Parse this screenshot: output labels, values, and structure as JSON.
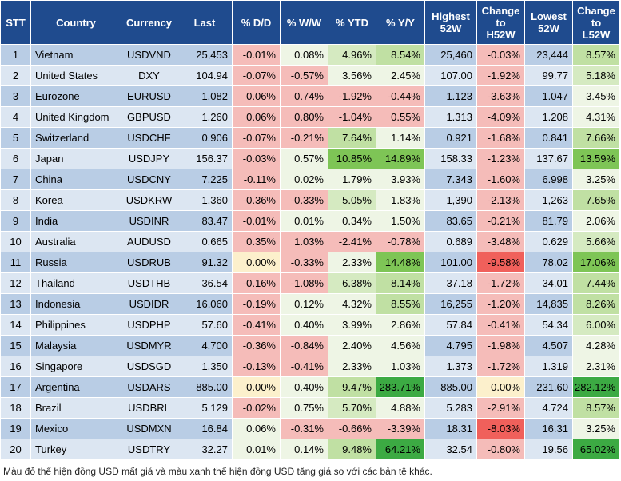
{
  "colors": {
    "header_bg": "#1f4b8e",
    "row_odd": "#b9cde5",
    "row_even": "#dce6f2"
  },
  "chart_data": {
    "type": "table",
    "columns": [
      "STT",
      "Country",
      "Currency",
      "Last",
      "% D/D",
      "% W/W",
      "% YTD",
      "% Y/Y",
      "Highest\n52W",
      "Change\nto\nH52W",
      "Lowest\n52W",
      "Change\nto\nL52W"
    ],
    "rows": [
      [
        "1",
        "Vietnam",
        "USDVND",
        "25,453",
        "-0.01%",
        "0.08%",
        "4.96%",
        "8.54%",
        "25,460",
        "-0.03%",
        "23,444",
        "8.57%"
      ],
      [
        "2",
        "United States",
        "DXY",
        "104.94",
        "-0.07%",
        "-0.57%",
        "3.56%",
        "2.45%",
        "107.00",
        "-1.92%",
        "99.77",
        "5.18%"
      ],
      [
        "3",
        "Eurozone",
        "EURUSD",
        "1.082",
        "0.06%",
        "0.74%",
        "-1.92%",
        "-0.44%",
        "1.123",
        "-3.63%",
        "1.047",
        "3.45%"
      ],
      [
        "4",
        "United Kingdom",
        "GBPUSD",
        "1.260",
        "0.06%",
        "0.80%",
        "-1.04%",
        "0.55%",
        "1.313",
        "-4.09%",
        "1.208",
        "4.31%"
      ],
      [
        "5",
        "Switzerland",
        "USDCHF",
        "0.906",
        "-0.07%",
        "-0.21%",
        "7.64%",
        "1.14%",
        "0.921",
        "-1.68%",
        "0.841",
        "7.66%"
      ],
      [
        "6",
        "Japan",
        "USDJPY",
        "156.37",
        "-0.03%",
        "0.57%",
        "10.85%",
        "14.89%",
        "158.33",
        "-1.23%",
        "137.67",
        "13.59%"
      ],
      [
        "7",
        "China",
        "USDCNY",
        "7.225",
        "-0.11%",
        "0.02%",
        "1.79%",
        "3.93%",
        "7.343",
        "-1.60%",
        "6.998",
        "3.25%"
      ],
      [
        "8",
        "Korea",
        "USDKRW",
        "1,360",
        "-0.36%",
        "-0.33%",
        "5.05%",
        "1.83%",
        "1,390",
        "-2.13%",
        "1,263",
        "7.65%"
      ],
      [
        "9",
        "India",
        "USDINR",
        "83.47",
        "-0.01%",
        "0.01%",
        "0.34%",
        "1.50%",
        "83.65",
        "-0.21%",
        "81.79",
        "2.06%"
      ],
      [
        "10",
        "Australia",
        "AUDUSD",
        "0.665",
        "0.35%",
        "1.03%",
        "-2.41%",
        "-0.78%",
        "0.689",
        "-3.48%",
        "0.629",
        "5.66%"
      ],
      [
        "11",
        "Russia",
        "USDRUB",
        "91.32",
        "0.00%",
        "-0.33%",
        "2.33%",
        "14.48%",
        "101.00",
        "-9.58%",
        "78.02",
        "17.06%"
      ],
      [
        "12",
        "Thailand",
        "USDTHB",
        "36.54",
        "-0.16%",
        "-1.08%",
        "6.38%",
        "8.14%",
        "37.18",
        "-1.72%",
        "34.01",
        "7.44%"
      ],
      [
        "13",
        "Indonesia",
        "USDIDR",
        "16,060",
        "-0.19%",
        "0.12%",
        "4.32%",
        "8.55%",
        "16,255",
        "-1.20%",
        "14,835",
        "8.26%"
      ],
      [
        "14",
        "Philippines",
        "USDPHP",
        "57.60",
        "-0.41%",
        "0.40%",
        "3.99%",
        "2.86%",
        "57.84",
        "-0.41%",
        "54.34",
        "6.00%"
      ],
      [
        "15",
        "Malaysia",
        "USDMYR",
        "4.700",
        "-0.36%",
        "-0.84%",
        "2.40%",
        "4.56%",
        "4.795",
        "-1.98%",
        "4.507",
        "4.28%"
      ],
      [
        "16",
        "Singapore",
        "USDSGD",
        "1.350",
        "-0.13%",
        "-0.41%",
        "2.33%",
        "1.03%",
        "1.373",
        "-1.72%",
        "1.319",
        "2.31%"
      ],
      [
        "17",
        "Argentina",
        "USDARS",
        "885.00",
        "0.00%",
        "0.40%",
        "9.47%",
        "283.71%",
        "885.00",
        "0.00%",
        "231.60",
        "282.12%"
      ],
      [
        "18",
        "Brazil",
        "USDBRL",
        "5.129",
        "-0.02%",
        "0.75%",
        "5.70%",
        "4.88%",
        "5.283",
        "-2.91%",
        "4.724",
        "8.57%"
      ],
      [
        "19",
        "Mexico",
        "USDMXN",
        "16.84",
        "0.06%",
        "-0.31%",
        "-0.66%",
        "-3.39%",
        "18.31",
        "-8.03%",
        "16.31",
        "3.25%"
      ],
      [
        "20",
        "Turkey",
        "USDTRY",
        "32.27",
        "0.01%",
        "0.14%",
        "9.48%",
        "64.21%",
        "32.54",
        "-0.80%",
        "19.56",
        "65.02%"
      ]
    ],
    "fills": [
      [
        null,
        null,
        null,
        null,
        "#f5bcb9",
        "#eef5e5",
        "#d5eac1",
        "#c0e0a3",
        null,
        "#f5bcb9",
        null,
        "#c0e0a3"
      ],
      [
        null,
        null,
        null,
        null,
        "#f5bcb9",
        "#f5bcb9",
        "#eef5e5",
        "#eef5e5",
        null,
        "#f5bcb9",
        null,
        "#d5eac1"
      ],
      [
        null,
        null,
        null,
        null,
        "#f5bcb9",
        "#f5bcb9",
        "#f5bcb9",
        "#f5bcb9",
        null,
        "#f5bcb9",
        null,
        "#eef5e5"
      ],
      [
        null,
        null,
        null,
        null,
        "#f5bcb9",
        "#f5bcb9",
        "#f5bcb9",
        "#f5bcb9",
        null,
        "#f5bcb9",
        null,
        "#eef5e5"
      ],
      [
        null,
        null,
        null,
        null,
        "#f5bcb9",
        "#f5bcb9",
        "#c0e0a3",
        "#eef5e5",
        null,
        "#f5bcb9",
        null,
        "#c0e0a3"
      ],
      [
        null,
        null,
        null,
        null,
        "#f5bcb9",
        "#eef5e5",
        "#7ec556",
        "#7ec556",
        null,
        "#f5bcb9",
        null,
        "#7ec556"
      ],
      [
        null,
        null,
        null,
        null,
        "#f5bcb9",
        "#eef5e5",
        "#eef5e5",
        "#eef5e5",
        null,
        "#f5bcb9",
        null,
        "#eef5e5"
      ],
      [
        null,
        null,
        null,
        null,
        "#f5bcb9",
        "#f5bcb9",
        "#d5eac1",
        "#eef5e5",
        null,
        "#f5bcb9",
        null,
        "#c0e0a3"
      ],
      [
        null,
        null,
        null,
        null,
        "#f5bcb9",
        "#eef5e5",
        "#eef5e5",
        "#eef5e5",
        null,
        "#f5bcb9",
        null,
        "#eef5e5"
      ],
      [
        null,
        null,
        null,
        null,
        "#f5bcb9",
        "#f5bcb9",
        "#f5bcb9",
        "#f5bcb9",
        null,
        "#f5bcb9",
        null,
        "#d5eac1"
      ],
      [
        null,
        null,
        null,
        null,
        "#fcf0cc",
        "#f5bcb9",
        "#eef5e5",
        "#7ec556",
        null,
        "#f0605b",
        null,
        "#7ec556"
      ],
      [
        null,
        null,
        null,
        null,
        "#f5bcb9",
        "#f5bcb9",
        "#d5eac1",
        "#c0e0a3",
        null,
        "#f5bcb9",
        null,
        "#c0e0a3"
      ],
      [
        null,
        null,
        null,
        null,
        "#f5bcb9",
        "#eef5e5",
        "#eef5e5",
        "#c0e0a3",
        null,
        "#f5bcb9",
        null,
        "#c0e0a3"
      ],
      [
        null,
        null,
        null,
        null,
        "#f5bcb9",
        "#eef5e5",
        "#eef5e5",
        "#eef5e5",
        null,
        "#f5bcb9",
        null,
        "#d5eac1"
      ],
      [
        null,
        null,
        null,
        null,
        "#f5bcb9",
        "#f5bcb9",
        "#eef5e5",
        "#eef5e5",
        null,
        "#f5bcb9",
        null,
        "#eef5e5"
      ],
      [
        null,
        null,
        null,
        null,
        "#f5bcb9",
        "#f5bcb9",
        "#eef5e5",
        "#eef5e5",
        null,
        "#f5bcb9",
        null,
        "#eef5e5"
      ],
      [
        null,
        null,
        null,
        null,
        "#fcf0cc",
        "#eef5e5",
        "#c0e0a3",
        "#3caa43",
        null,
        "#fcf0cc",
        null,
        "#3caa43"
      ],
      [
        null,
        null,
        null,
        null,
        "#f5bcb9",
        "#eef5e5",
        "#d5eac1",
        "#eef5e5",
        null,
        "#f5bcb9",
        null,
        "#c0e0a3"
      ],
      [
        null,
        null,
        null,
        null,
        "#eef5e5",
        "#f5bcb9",
        "#f5bcb9",
        "#f5bcb9",
        null,
        "#f0605b",
        null,
        "#eef5e5"
      ],
      [
        null,
        null,
        null,
        null,
        "#eef5e5",
        "#eef5e5",
        "#c0e0a3",
        "#3caa43",
        null,
        "#f5bcb9",
        null,
        "#3caa43"
      ]
    ]
  },
  "footnote": "Màu đỏ thể hiện đồng USD mất giá và màu xanh thể hiện đồng USD tăng giá so với các bản tệ khác."
}
